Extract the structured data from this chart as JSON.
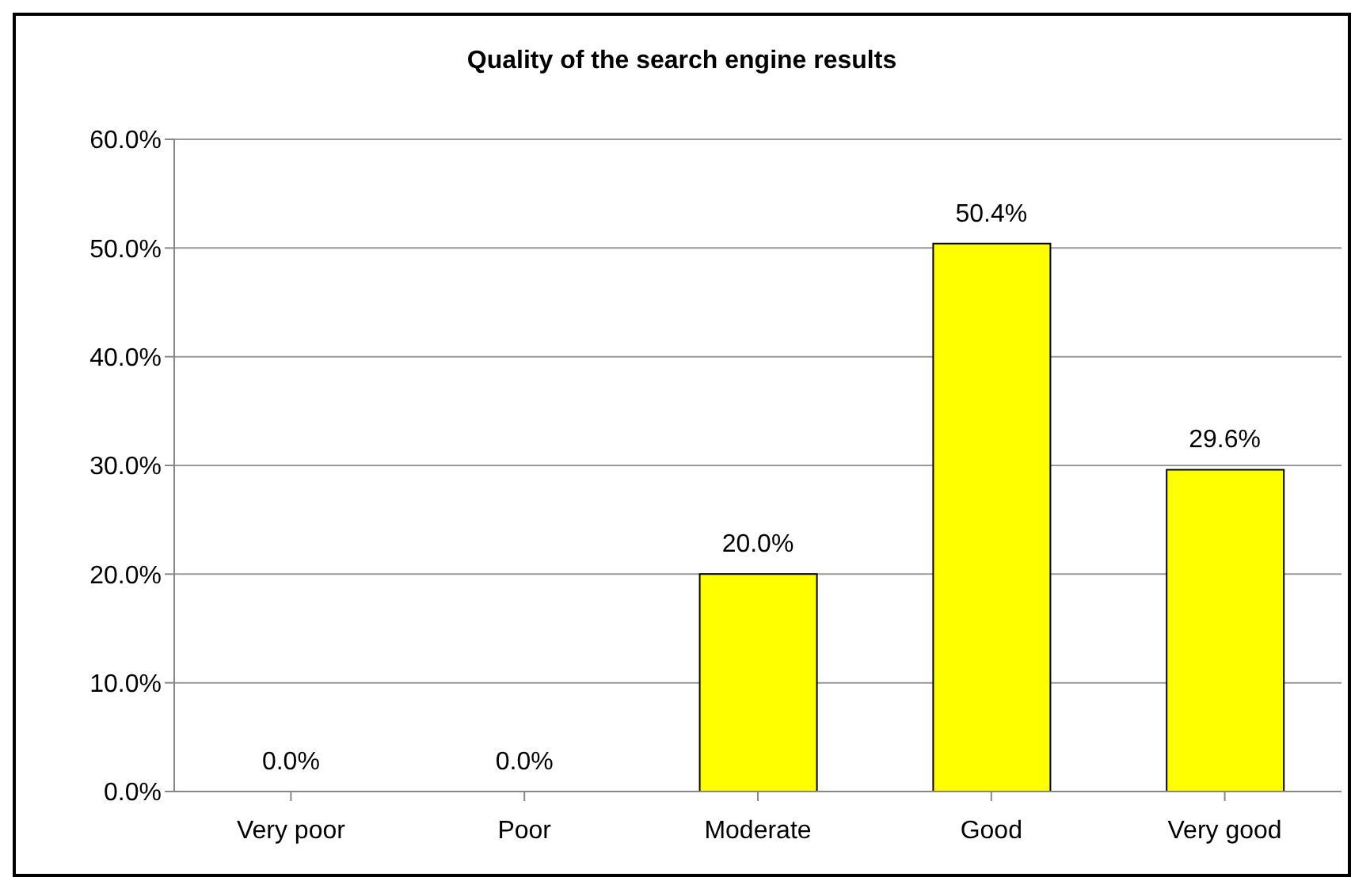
{
  "chart_data": {
    "type": "bar",
    "title": "Quality of the search engine results",
    "categories": [
      "Very poor",
      "Poor",
      "Moderate",
      "Good",
      "Very good"
    ],
    "values": [
      0,
      0,
      20.0,
      50.4,
      29.6
    ],
    "value_labels": [
      "0.0%",
      "0.0%",
      "20.0%",
      "50.4%",
      "29.6%"
    ],
    "color": "#ffff00",
    "ylim": [
      0,
      60
    ],
    "yticks": [
      {
        "value": 0,
        "label": "0.0%"
      },
      {
        "value": 10,
        "label": "10.0%"
      },
      {
        "value": 20,
        "label": "20.0%"
      },
      {
        "value": 30,
        "label": "30.0%"
      },
      {
        "value": 40,
        "label": "40.0%"
      },
      {
        "value": 50,
        "label": "50.0%"
      },
      {
        "value": 60,
        "label": "60.0%"
      }
    ],
    "grid": "y",
    "legend": false
  }
}
